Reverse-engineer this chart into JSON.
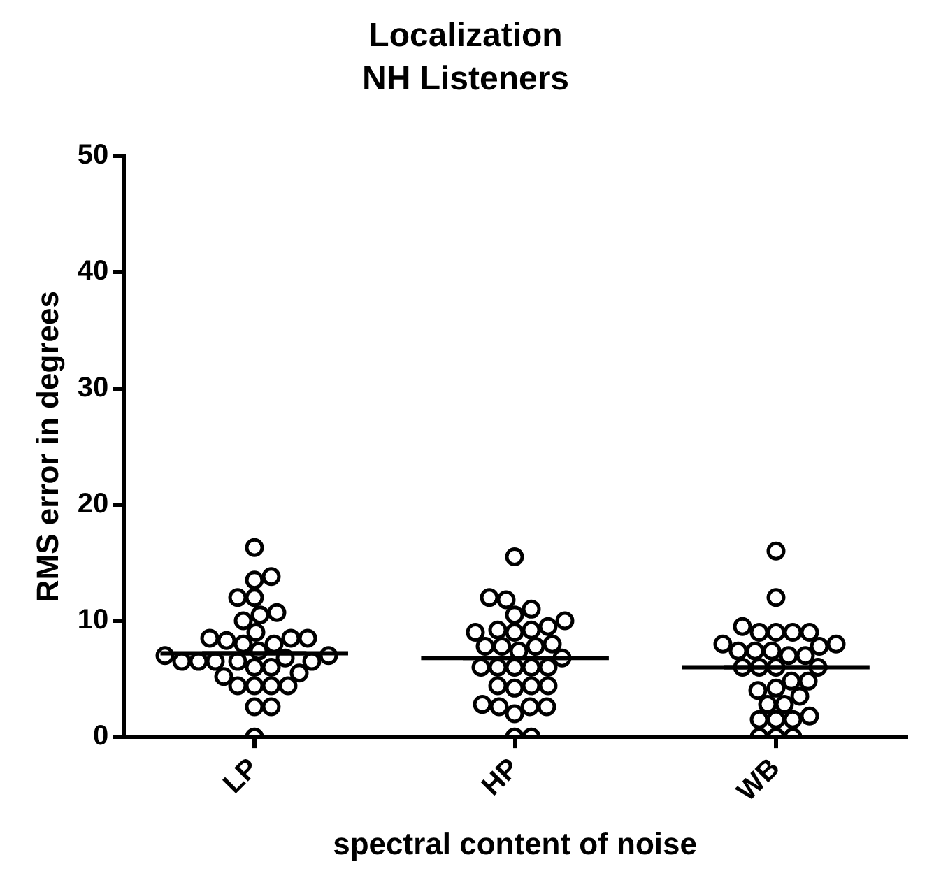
{
  "chart_data": {
    "type": "scatter",
    "title": "Localization",
    "subtitle": "NH Listeners",
    "xlabel": "spectral content of noise",
    "ylabel": "RMS error in degrees",
    "categories": [
      "LP",
      "HP",
      "WB"
    ],
    "ylim": [
      0,
      50
    ],
    "yticks": [
      0,
      10,
      20,
      30,
      40,
      50
    ],
    "grid": false,
    "legend": false,
    "marker": "circle",
    "series": [
      {
        "type": "scatter",
        "color": "#000000",
        "x": [
          "LP",
          "LP",
          "LP",
          "LP",
          "LP",
          "LP",
          "LP",
          "LP",
          "LP",
          "LP",
          "LP",
          "LP",
          "LP",
          "LP",
          "LP",
          "LP",
          "LP",
          "LP",
          "LP",
          "LP",
          "LP",
          "LP",
          "LP",
          "LP",
          "LP",
          "LP",
          "LP",
          "LP",
          "LP",
          "LP",
          "LP",
          "LP",
          "LP",
          "LP",
          "LP"
        ],
        "values": [
          16.3,
          12,
          13.5,
          13.8,
          12,
          10.5,
          10.7,
          10,
          9,
          8.5,
          8,
          8.3,
          8.5,
          8.5,
          6.5,
          6,
          6.5,
          6.8,
          7,
          6.5,
          6.5,
          6.5,
          4.4,
          4.4,
          4.4,
          4.4,
          5.2,
          2.6,
          2.6,
          0,
          7.4,
          6,
          7,
          8,
          5.5
        ]
      },
      {
        "type": "scatter",
        "color": "#000000",
        "x": [
          "HP",
          "HP",
          "HP",
          "HP",
          "HP",
          "HP",
          "HP",
          "HP",
          "HP",
          "HP",
          "HP",
          "HP",
          "HP",
          "HP",
          "HP",
          "HP",
          "HP",
          "HP",
          "HP",
          "HP",
          "HP",
          "HP",
          "HP",
          "HP",
          "HP",
          "HP",
          "HP",
          "HP",
          "HP",
          "HP",
          "HP",
          "HP",
          "HP"
        ],
        "values": [
          15.5,
          12,
          11.8,
          11,
          10.5,
          10,
          9,
          9.2,
          9.2,
          9.5,
          9,
          7.8,
          8,
          7.8,
          7.8,
          6,
          6,
          6,
          6,
          6,
          4.4,
          4.4,
          4.4,
          4.2,
          2.6,
          2,
          2.8,
          2.6,
          2.6,
          0,
          0,
          6.8,
          7.4
        ]
      },
      {
        "type": "scatter",
        "color": "#000000",
        "x": [
          "WB",
          "WB",
          "WB",
          "WB",
          "WB",
          "WB",
          "WB",
          "WB",
          "WB",
          "WB",
          "WB",
          "WB",
          "WB",
          "WB",
          "WB",
          "WB",
          "WB",
          "WB",
          "WB",
          "WB",
          "WB",
          "WB",
          "WB",
          "WB",
          "WB",
          "WB",
          "WB",
          "WB",
          "WB",
          "WB",
          "WB",
          "WB",
          "WB"
        ],
        "values": [
          16,
          12,
          9,
          9,
          9,
          9,
          9.5,
          8,
          8,
          7.4,
          7.4,
          6,
          6,
          6,
          6,
          4.8,
          4.2,
          4.8,
          4,
          3.5,
          2.8,
          2.8,
          1.5,
          1.8,
          1.5,
          0,
          0,
          0,
          1.5,
          7,
          7,
          7.4,
          7.8
        ]
      },
      {
        "type": "box",
        "color": "#000000",
        "boxes": [
          {
            "low": 7.2,
            "q1": 7.2,
            "median": 7.2,
            "q3": 7.2,
            "high": 7.2
          },
          {
            "low": 6.8,
            "q1": 6.8,
            "median": 6.8,
            "q3": 6.8,
            "high": 6.8
          },
          {
            "low": 6.0,
            "q1": 6.0,
            "median": 6.0,
            "q3": 6.0,
            "high": 6.0
          }
        ]
      }
    ]
  }
}
